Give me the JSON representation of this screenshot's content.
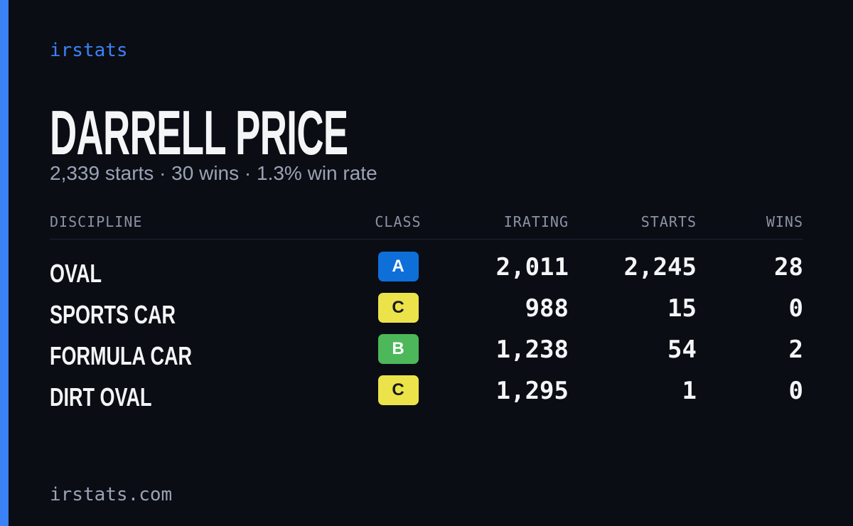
{
  "header": {
    "brand": "irstats",
    "title": "DARRELL PRICE",
    "subtitle": "2,339 starts · 30 wins · 1.3% win rate"
  },
  "table": {
    "columns": [
      "DISCIPLINE",
      "CLASS",
      "IRATING",
      "STARTS",
      "WINS"
    ],
    "rows": [
      [
        "OVAL",
        "A",
        "2,011",
        "2,245",
        "28"
      ],
      [
        "SPORTS CAR",
        "C",
        "988",
        "15",
        "0"
      ],
      [
        "FORMULA CAR",
        "B",
        "1,238",
        "54",
        "2"
      ],
      [
        "DIRT OVAL",
        "C",
        "1,295",
        "1",
        "0"
      ]
    ],
    "class_colors": {
      "A": {
        "background": "#0f6fd9",
        "text": "#ffffff"
      },
      "B": {
        "background": "#4cb85a",
        "text": "#ffffff"
      },
      "C": {
        "background": "#ece34a",
        "text": "#1a1a1a"
      }
    }
  },
  "footer": {
    "url": "irstats.com"
  }
}
